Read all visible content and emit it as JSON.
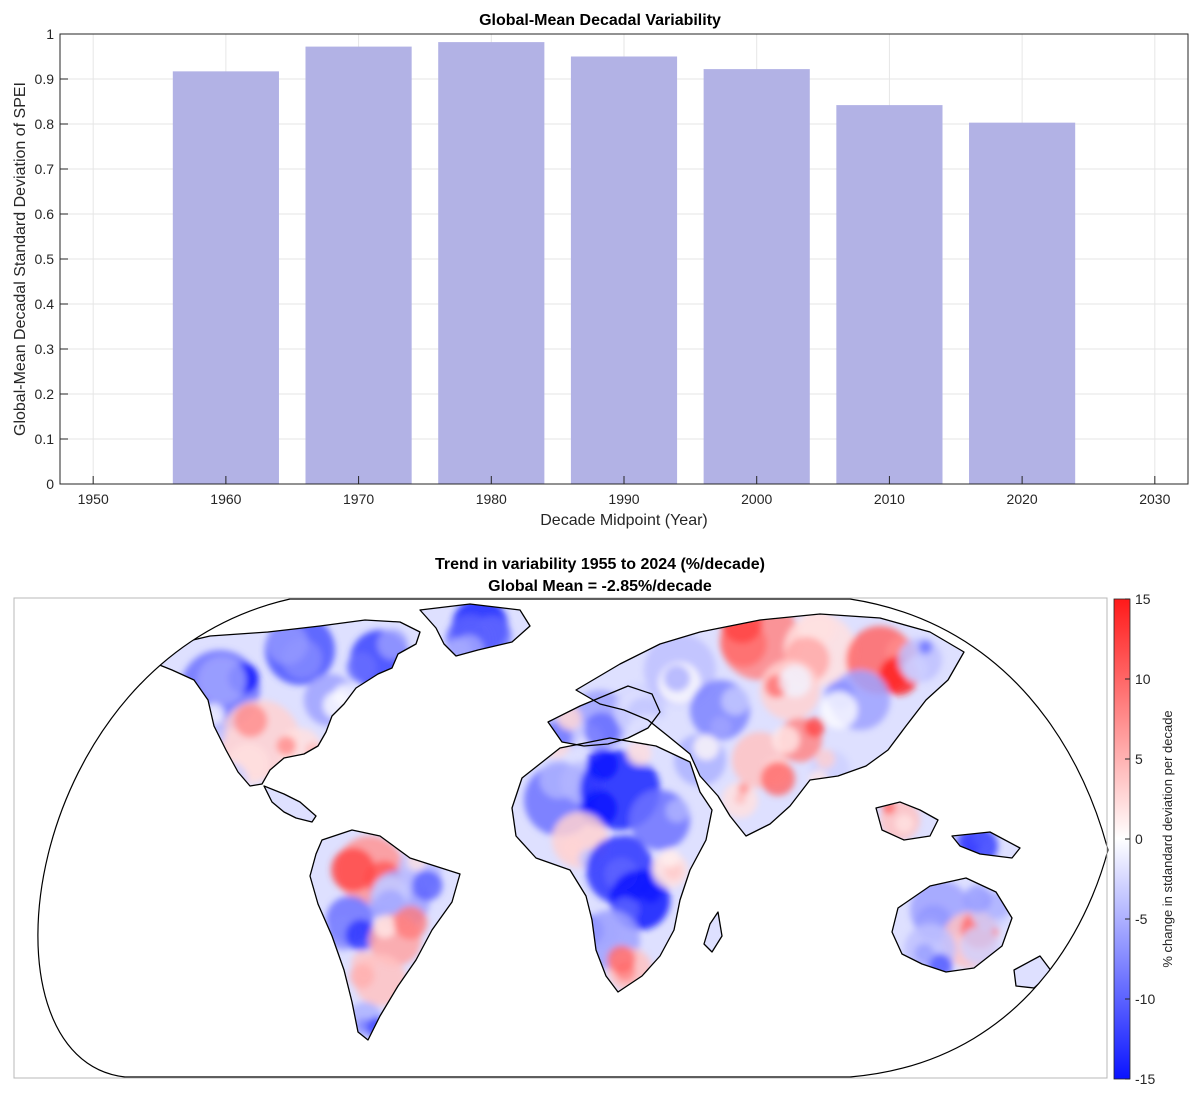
{
  "chart_data": [
    {
      "type": "bar",
      "title": "Global-Mean Decadal Variability",
      "xlabel": "Decade Midpoint (Year)",
      "ylabel": "Global-Mean Decadal Standard Deviation of SPEI",
      "x": [
        1960,
        1970,
        1980,
        1990,
        2000,
        2010,
        2020
      ],
      "values": [
        0.917,
        0.972,
        0.982,
        0.95,
        0.922,
        0.842,
        0.803
      ],
      "xlim": [
        1947.5,
        2032.5
      ],
      "ylim": [
        0,
        1
      ],
      "xticks": [
        "1950",
        "1960",
        "1970",
        "1980",
        "1990",
        "2000",
        "2010",
        "2020",
        "2030"
      ],
      "yticks": [
        "0",
        "0.1",
        "0.2",
        "0.3",
        "0.4",
        "0.5",
        "0.6",
        "0.7",
        "0.8",
        "0.9",
        "1"
      ],
      "bar_color": "#b2b2e5",
      "grid": true
    },
    {
      "type": "heatmap",
      "title": "Trend in variability 1955 to 2024 (%/decade)",
      "subtitle": "Global Mean = -2.85%/decade",
      "colorbar_label": "% change in stdandard deviation per decade",
      "colorbar_range": [
        -15,
        15
      ],
      "colorbar_ticks": [
        "15",
        "10",
        "5",
        "0",
        "-5",
        "-10",
        "-15"
      ],
      "colormap": [
        "#0a14ff",
        "#ffffff",
        "#ff1a1a"
      ],
      "projection": "Robinson"
    }
  ]
}
